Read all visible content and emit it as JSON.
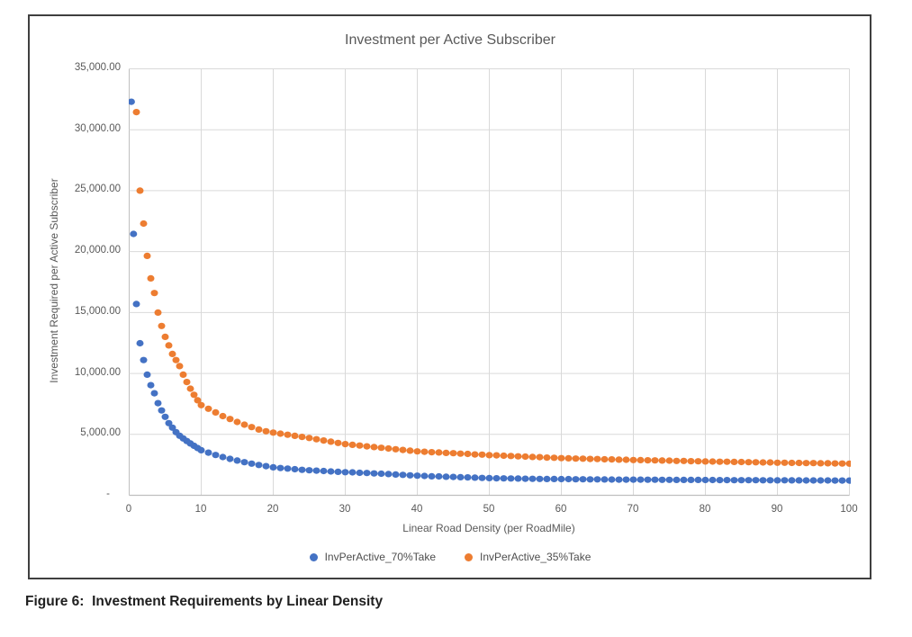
{
  "chart": {
    "title": "Investment per Active Subscriber",
    "y_axis_title": "Investment Required per Active Subscriber",
    "x_axis_title": "Linear Road Density (per RoadMile)"
  },
  "caption": "Figure 6:  Investment Requirements by Linear Density",
  "colors": {
    "series_70take": "#4472C4",
    "series_35take": "#ED7D31",
    "gridline": "#D9D9D9",
    "axis_line": "#BFBFBF",
    "text_gray": "#595959",
    "border": "#3f3f3f"
  },
  "chart_data": {
    "type": "scatter",
    "title": "Investment per Active Subscriber",
    "xlabel": "Linear Road Density (per RoadMile)",
    "ylabel": "Investment Required per Active Subscriber",
    "xlim": [
      0,
      100
    ],
    "ylim": [
      0,
      35000
    ],
    "grid": true,
    "legend_position": "bottom",
    "x_ticks": [
      0,
      10,
      20,
      30,
      40,
      50,
      60,
      70,
      80,
      90,
      100
    ],
    "y_ticks": [
      {
        "value": 35000,
        "label": "35,000.00"
      },
      {
        "value": 30000,
        "label": "30,000.00"
      },
      {
        "value": 25000,
        "label": "25,000.00"
      },
      {
        "value": 20000,
        "label": "20,000.00"
      },
      {
        "value": 15000,
        "label": "15,000.00"
      },
      {
        "value": 10000,
        "label": "10,000.00"
      },
      {
        "value": 5000,
        "label": "5,000.00"
      },
      {
        "value": 0,
        "label": "-"
      }
    ],
    "series": [
      {
        "name": "InvPerActive_70%Take",
        "color": "#4472C4",
        "points": [
          [
            0.3,
            32300
          ],
          [
            0.6,
            21450
          ],
          [
            1,
            15700
          ],
          [
            1.5,
            12480
          ],
          [
            2,
            11100
          ],
          [
            2.5,
            9900
          ],
          [
            3,
            9040
          ],
          [
            3.5,
            8370
          ],
          [
            4,
            7560
          ],
          [
            4.5,
            6960
          ],
          [
            5,
            6440
          ],
          [
            5.5,
            5920
          ],
          [
            6,
            5550
          ],
          [
            6.5,
            5180
          ],
          [
            7,
            4890
          ],
          [
            7.5,
            4670
          ],
          [
            8,
            4450
          ],
          [
            8.5,
            4250
          ],
          [
            9,
            4060
          ],
          [
            9.5,
            3880
          ],
          [
            10,
            3700
          ],
          [
            11,
            3500
          ],
          [
            12,
            3310
          ],
          [
            13,
            3140
          ],
          [
            14,
            2990
          ],
          [
            15,
            2850
          ],
          [
            16,
            2720
          ],
          [
            17,
            2600
          ],
          [
            18,
            2490
          ],
          [
            19,
            2390
          ],
          [
            20,
            2300
          ],
          [
            21,
            2240
          ],
          [
            22,
            2190
          ],
          [
            23,
            2140
          ],
          [
            24,
            2090
          ],
          [
            25,
            2050
          ],
          [
            26,
            2020
          ],
          [
            27,
            1990
          ],
          [
            28,
            1955
          ],
          [
            29,
            1930
          ],
          [
            30,
            1900
          ],
          [
            31,
            1880
          ],
          [
            32,
            1845
          ],
          [
            33,
            1830
          ],
          [
            34,
            1795
          ],
          [
            35,
            1770
          ],
          [
            36,
            1745
          ],
          [
            37,
            1705
          ],
          [
            38,
            1675
          ],
          [
            39,
            1640
          ],
          [
            40,
            1610
          ],
          [
            41,
            1585
          ],
          [
            42,
            1560
          ],
          [
            43,
            1548
          ],
          [
            44,
            1522
          ],
          [
            45,
            1508
          ],
          [
            46,
            1482
          ],
          [
            47,
            1468
          ],
          [
            48,
            1448
          ],
          [
            49,
            1422
          ],
          [
            50,
            1412
          ],
          [
            51,
            1398
          ],
          [
            52,
            1390
          ],
          [
            53,
            1378
          ],
          [
            54,
            1372
          ],
          [
            55,
            1358
          ],
          [
            56,
            1352
          ],
          [
            57,
            1347
          ],
          [
            58,
            1338
          ],
          [
            59,
            1336
          ],
          [
            60,
            1328
          ],
          [
            61,
            1326
          ],
          [
            62,
            1316
          ],
          [
            63,
            1314
          ],
          [
            64,
            1306
          ],
          [
            65,
            1305
          ],
          [
            66,
            1296
          ],
          [
            67,
            1295
          ],
          [
            68,
            1288
          ],
          [
            69,
            1288
          ],
          [
            70,
            1282
          ],
          [
            71,
            1283
          ],
          [
            72,
            1276
          ],
          [
            73,
            1277
          ],
          [
            74,
            1270
          ],
          [
            75,
            1271
          ],
          [
            76,
            1264
          ],
          [
            77,
            1265
          ],
          [
            78,
            1259
          ],
          [
            79,
            1260
          ],
          [
            80,
            1254
          ],
          [
            81,
            1254
          ],
          [
            82,
            1248
          ],
          [
            83,
            1249
          ],
          [
            84,
            1243
          ],
          [
            85,
            1244
          ],
          [
            86,
            1239
          ],
          [
            87,
            1240
          ],
          [
            88,
            1234
          ],
          [
            89,
            1235
          ],
          [
            90,
            1229
          ],
          [
            91,
            1230
          ],
          [
            92,
            1225
          ],
          [
            93,
            1226
          ],
          [
            94,
            1221
          ],
          [
            95,
            1222
          ],
          [
            96,
            1217
          ],
          [
            97,
            1218
          ],
          [
            98,
            1213
          ],
          [
            99,
            1214
          ],
          [
            100,
            1210
          ]
        ]
      },
      {
        "name": "InvPerActive_35%Take",
        "color": "#ED7D31",
        "points": [
          [
            1,
            31450
          ],
          [
            1.5,
            25000
          ],
          [
            2,
            22300
          ],
          [
            2.5,
            19650
          ],
          [
            3,
            17800
          ],
          [
            3.5,
            16600
          ],
          [
            4,
            15000
          ],
          [
            4.5,
            13900
          ],
          [
            5,
            13000
          ],
          [
            5.5,
            12300
          ],
          [
            6,
            11600
          ],
          [
            6.5,
            11100
          ],
          [
            7,
            10600
          ],
          [
            7.5,
            9900
          ],
          [
            8,
            9300
          ],
          [
            8.5,
            8750
          ],
          [
            9,
            8250
          ],
          [
            9.5,
            7800
          ],
          [
            10,
            7400
          ],
          [
            11,
            7100
          ],
          [
            12,
            6800
          ],
          [
            13,
            6500
          ],
          [
            14,
            6260
          ],
          [
            15,
            6020
          ],
          [
            16,
            5800
          ],
          [
            17,
            5600
          ],
          [
            18,
            5400
          ],
          [
            19,
            5260
          ],
          [
            20,
            5150
          ],
          [
            21,
            5060
          ],
          [
            22,
            4970
          ],
          [
            23,
            4880
          ],
          [
            24,
            4790
          ],
          [
            25,
            4700
          ],
          [
            26,
            4600
          ],
          [
            27,
            4500
          ],
          [
            28,
            4400
          ],
          [
            29,
            4300
          ],
          [
            30,
            4200
          ],
          [
            31,
            4140
          ],
          [
            32,
            4080
          ],
          [
            33,
            4020
          ],
          [
            34,
            3960
          ],
          [
            35,
            3900
          ],
          [
            36,
            3840
          ],
          [
            37,
            3780
          ],
          [
            38,
            3720
          ],
          [
            39,
            3660
          ],
          [
            40,
            3600
          ],
          [
            41,
            3572
          ],
          [
            42,
            3536
          ],
          [
            43,
            3514
          ],
          [
            44,
            3476
          ],
          [
            45,
            3454
          ],
          [
            46,
            3416
          ],
          [
            47,
            3394
          ],
          [
            48,
            3356
          ],
          [
            49,
            3334
          ],
          [
            50,
            3296
          ],
          [
            51,
            3278
          ],
          [
            52,
            3246
          ],
          [
            53,
            3228
          ],
          [
            54,
            3196
          ],
          [
            55,
            3178
          ],
          [
            56,
            3146
          ],
          [
            57,
            3128
          ],
          [
            58,
            3096
          ],
          [
            59,
            3078
          ],
          [
            60,
            3046
          ],
          [
            61,
            3038
          ],
          [
            62,
            3016
          ],
          [
            63,
            3008
          ],
          [
            64,
            2986
          ],
          [
            65,
            2978
          ],
          [
            66,
            2956
          ],
          [
            67,
            2948
          ],
          [
            68,
            2926
          ],
          [
            69,
            2918
          ],
          [
            70,
            2896
          ],
          [
            71,
            2890
          ],
          [
            72,
            2872
          ],
          [
            73,
            2866
          ],
          [
            74,
            2848
          ],
          [
            75,
            2842
          ],
          [
            76,
            2824
          ],
          [
            77,
            2818
          ],
          [
            78,
            2800
          ],
          [
            79,
            2794
          ],
          [
            80,
            2776
          ],
          [
            81,
            2772
          ],
          [
            82,
            2756
          ],
          [
            83,
            2752
          ],
          [
            84,
            2736
          ],
          [
            85,
            2732
          ],
          [
            86,
            2716
          ],
          [
            87,
            2712
          ],
          [
            88,
            2696
          ],
          [
            89,
            2692
          ],
          [
            90,
            2676
          ],
          [
            91,
            2674
          ],
          [
            92,
            2660
          ],
          [
            93,
            2658
          ],
          [
            94,
            2644
          ],
          [
            95,
            2642
          ],
          [
            96,
            2628
          ],
          [
            97,
            2626
          ],
          [
            98,
            2612
          ],
          [
            99,
            2610
          ],
          [
            100,
            2598
          ]
        ]
      }
    ]
  }
}
